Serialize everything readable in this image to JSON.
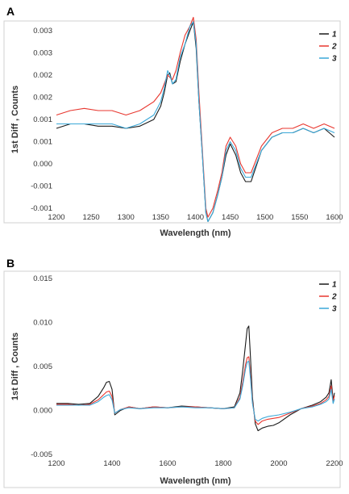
{
  "panels": [
    {
      "letter": "A",
      "chart_data": {
        "type": "line",
        "xlabel": "Wavelength (nm)",
        "ylabel": "1st Diff , Counts",
        "xlim": [
          1200,
          1600
        ],
        "ylim": [
          -0.001,
          0.003
        ],
        "xticks": [
          1200,
          1250,
          1300,
          1350,
          1400,
          1450,
          1500,
          1550,
          1600
        ],
        "yticks": [
          -0.001,
          -0.0005,
          0,
          0.0005,
          0.001,
          0.0015,
          0.002,
          0.0025,
          0.003
        ],
        "ytick_labels": [
          "-0.001",
          "-0.001",
          "0.000",
          "0.001",
          "0.001",
          "0.002",
          "0.002",
          "0.003",
          "0.003"
        ],
        "grid": false,
        "legend_position": "top-right",
        "series": [
          {
            "name": "1",
            "color": "#1a1a1a",
            "x": [
              1200,
              1220,
              1240,
              1260,
              1280,
              1300,
              1320,
              1340,
              1350,
              1355,
              1360,
              1363,
              1367,
              1372,
              1378,
              1385,
              1392,
              1397,
              1401,
              1405,
              1410,
              1415,
              1418,
              1425,
              1432,
              1438,
              1444,
              1450,
              1458,
              1465,
              1472,
              1480,
              1495,
              1510,
              1525,
              1540,
              1555,
              1570,
              1585,
              1600
            ],
            "y": [
              0.0008,
              0.0009,
              0.0009,
              0.00085,
              0.00085,
              0.0008,
              0.00085,
              0.001,
              0.0013,
              0.0016,
              0.002,
              0.00205,
              0.0018,
              0.00185,
              0.0023,
              0.0027,
              0.003,
              0.0032,
              0.0026,
              0.0014,
              0.0002,
              -0.0011,
              -0.0013,
              -0.0011,
              -0.0007,
              -0.0003,
              0.0002,
              0.00045,
              0.0002,
              -0.0002,
              -0.0004,
              -0.0004,
              0.0003,
              0.0006,
              0.0007,
              0.0007,
              0.0008,
              0.0007,
              0.0008,
              0.0006
            ]
          },
          {
            "name": "2",
            "color": "#e8372f",
            "x": [
              1200,
              1220,
              1240,
              1260,
              1280,
              1300,
              1320,
              1340,
              1350,
              1355,
              1360,
              1363,
              1367,
              1372,
              1378,
              1385,
              1392,
              1397,
              1401,
              1405,
              1410,
              1415,
              1418,
              1425,
              1432,
              1438,
              1444,
              1450,
              1458,
              1465,
              1472,
              1480,
              1495,
              1510,
              1525,
              1540,
              1555,
              1570,
              1585,
              1600
            ],
            "y": [
              0.0011,
              0.0012,
              0.00125,
              0.0012,
              0.0012,
              0.0011,
              0.0012,
              0.0014,
              0.0016,
              0.0018,
              0.002,
              0.00195,
              0.0019,
              0.0021,
              0.0025,
              0.0029,
              0.0031,
              0.0033,
              0.0028,
              0.0016,
              0.0003,
              -0.001,
              -0.0012,
              -0.001,
              -0.0006,
              -0.0002,
              0.0004,
              0.0006,
              0.0004,
              0.0,
              -0.0002,
              -0.0002,
              0.0004,
              0.0007,
              0.0008,
              0.0008,
              0.0009,
              0.0008,
              0.0009,
              0.0008
            ]
          },
          {
            "name": "3",
            "color": "#3aa8d8",
            "x": [
              1200,
              1220,
              1240,
              1260,
              1280,
              1300,
              1320,
              1340,
              1350,
              1355,
              1360,
              1363,
              1367,
              1372,
              1378,
              1385,
              1392,
              1397,
              1401,
              1405,
              1410,
              1415,
              1418,
              1425,
              1432,
              1438,
              1444,
              1450,
              1458,
              1465,
              1472,
              1480,
              1495,
              1510,
              1525,
              1540,
              1555,
              1570,
              1585,
              1600
            ],
            "y": [
              0.0009,
              0.0009,
              0.0009,
              0.0009,
              0.0009,
              0.0008,
              0.0009,
              0.0011,
              0.0014,
              0.0017,
              0.0021,
              0.002,
              0.0018,
              0.0019,
              0.0024,
              0.0027,
              0.0031,
              0.0032,
              0.0027,
              0.0014,
              0.0002,
              -0.0011,
              -0.0013,
              -0.0011,
              -0.0007,
              -0.0003,
              0.0003,
              0.0005,
              0.0003,
              -0.0001,
              -0.0003,
              -0.0003,
              0.0003,
              0.0006,
              0.0007,
              0.0007,
              0.0008,
              0.0007,
              0.0008,
              0.0007
            ]
          }
        ]
      }
    },
    {
      "letter": "B",
      "chart_data": {
        "type": "line",
        "xlabel": "Wavelength (nm)",
        "ylabel": "1st Diff , Counts",
        "xlim": [
          1200,
          2200
        ],
        "ylim": [
          -0.005,
          0.015
        ],
        "xticks": [
          1200,
          1400,
          1600,
          1800,
          2000,
          2200
        ],
        "yticks": [
          -0.005,
          0,
          0.005,
          0.01,
          0.015
        ],
        "ytick_labels": [
          "-0.005",
          "0.000",
          "0.005",
          "0.010",
          "0.015"
        ],
        "grid": false,
        "legend_position": "top-right",
        "series": [
          {
            "name": "1",
            "color": "#1a1a1a",
            "x": [
              1200,
              1240,
              1280,
              1320,
              1350,
              1370,
              1380,
              1390,
              1400,
              1410,
              1430,
              1460,
              1500,
              1550,
              1600,
              1650,
              1700,
              1750,
              1800,
              1840,
              1860,
              1870,
              1880,
              1886,
              1892,
              1898,
              1905,
              1915,
              1925,
              1940,
              1960,
              1980,
              2000,
              2040,
              2080,
              2120,
              2150,
              2170,
              2180,
              2188,
              2195,
              2200
            ],
            "y": [
              0.0008,
              0.0008,
              0.0007,
              0.0008,
              0.0016,
              0.0026,
              0.0032,
              0.0033,
              0.0024,
              -0.0005,
              0.0,
              0.0004,
              0.0002,
              0.0004,
              0.0003,
              0.0005,
              0.0004,
              0.0003,
              0.0002,
              0.0004,
              0.002,
              0.0045,
              0.0075,
              0.0093,
              0.0096,
              0.006,
              0.0015,
              -0.0015,
              -0.0023,
              -0.002,
              -0.0018,
              -0.0017,
              -0.0014,
              -0.0005,
              0.0002,
              0.0006,
              0.001,
              0.0015,
              0.002,
              0.0035,
              0.0012,
              0.002
            ]
          },
          {
            "name": "2",
            "color": "#e8372f",
            "x": [
              1200,
              1240,
              1280,
              1320,
              1350,
              1370,
              1380,
              1390,
              1400,
              1410,
              1430,
              1460,
              1500,
              1550,
              1600,
              1650,
              1700,
              1750,
              1800,
              1840,
              1860,
              1870,
              1880,
              1886,
              1892,
              1898,
              1905,
              1915,
              1925,
              1940,
              1960,
              1980,
              2000,
              2040,
              2080,
              2120,
              2150,
              2170,
              2180,
              2188,
              2195,
              2200
            ],
            "y": [
              0.0007,
              0.0007,
              0.0006,
              0.0007,
              0.0012,
              0.0018,
              0.0021,
              0.0022,
              0.0016,
              -0.0003,
              0.0001,
              0.0004,
              0.0002,
              0.0004,
              0.0003,
              0.0004,
              0.0004,
              0.0003,
              0.0002,
              0.0003,
              0.0015,
              0.0032,
              0.0052,
              0.006,
              0.0061,
              0.004,
              0.001,
              -0.0012,
              -0.0016,
              -0.0012,
              -0.001,
              -0.0009,
              -0.0008,
              -0.0003,
              0.0002,
              0.0005,
              0.0008,
              0.0012,
              0.0016,
              0.0028,
              0.001,
              0.0017
            ]
          },
          {
            "name": "3",
            "color": "#3aa8d8",
            "x": [
              1200,
              1240,
              1280,
              1320,
              1350,
              1370,
              1380,
              1390,
              1400,
              1410,
              1430,
              1460,
              1500,
              1550,
              1600,
              1650,
              1700,
              1750,
              1800,
              1840,
              1860,
              1870,
              1880,
              1886,
              1892,
              1898,
              1905,
              1915,
              1925,
              1940,
              1960,
              1980,
              2000,
              2040,
              2080,
              2120,
              2150,
              2170,
              2180,
              2188,
              2195,
              2200
            ],
            "y": [
              0.0006,
              0.0006,
              0.0006,
              0.0006,
              0.001,
              0.0015,
              0.0017,
              0.0018,
              0.0012,
              -0.0003,
              0.0001,
              0.0003,
              0.0002,
              0.0003,
              0.0003,
              0.0004,
              0.0003,
              0.0003,
              0.0002,
              0.0003,
              0.0013,
              0.0028,
              0.0047,
              0.0055,
              0.0056,
              0.0036,
              0.0008,
              -0.001,
              -0.0012,
              -0.0009,
              -0.0007,
              -0.0006,
              -0.0005,
              -0.0002,
              0.0002,
              0.0004,
              0.0007,
              0.001,
              0.0013,
              0.0024,
              0.0008,
              0.0013
            ]
          }
        ]
      }
    }
  ]
}
